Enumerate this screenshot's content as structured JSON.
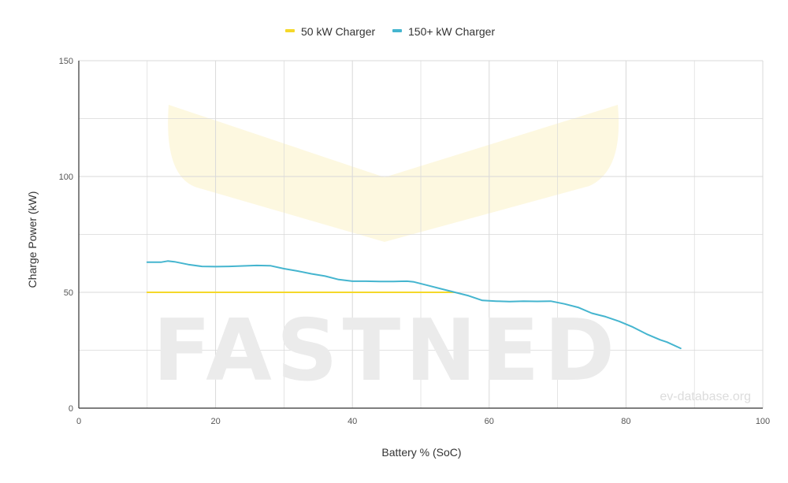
{
  "chart_data": {
    "type": "line",
    "xlabel": "Battery % (SoC)",
    "ylabel": "Charge Power (kW)",
    "xlim": [
      0,
      100
    ],
    "ylim": [
      0,
      150
    ],
    "x_ticks": [
      "0",
      "20",
      "40",
      "60",
      "80",
      "100"
    ],
    "y_ticks": [
      "0",
      "50",
      "100",
      "150"
    ],
    "grid": true,
    "legend_position": "top",
    "series": [
      {
        "name": "50 kW Charger",
        "color": "#f5d82a",
        "points": [
          [
            10,
            50
          ],
          [
            55,
            50
          ]
        ]
      },
      {
        "name": "150+ kW Charger",
        "color": "#45b5cf",
        "points": [
          [
            10,
            63
          ],
          [
            12,
            63
          ],
          [
            13,
            63.5
          ],
          [
            14,
            63.2
          ],
          [
            16,
            62
          ],
          [
            18,
            61.2
          ],
          [
            20,
            61.1
          ],
          [
            22,
            61.2
          ],
          [
            24,
            61.4
          ],
          [
            26,
            61.6
          ],
          [
            28,
            61.5
          ],
          [
            30,
            60.2
          ],
          [
            32,
            59.2
          ],
          [
            34,
            58
          ],
          [
            36,
            57
          ],
          [
            38,
            55.5
          ],
          [
            40,
            54.8
          ],
          [
            42,
            54.8
          ],
          [
            44,
            54.7
          ],
          [
            46,
            54.7
          ],
          [
            48,
            54.8
          ],
          [
            49,
            54.5
          ],
          [
            51,
            53
          ],
          [
            53,
            51.5
          ],
          [
            55,
            50
          ],
          [
            57,
            48.5
          ],
          [
            59,
            46.5
          ],
          [
            61,
            46.2
          ],
          [
            63,
            46
          ],
          [
            65,
            46.2
          ],
          [
            67,
            46.1
          ],
          [
            69,
            46.2
          ],
          [
            71,
            45
          ],
          [
            73,
            43.5
          ],
          [
            75,
            41
          ],
          [
            77,
            39.5
          ],
          [
            79,
            37.5
          ],
          [
            81,
            35
          ],
          [
            83,
            32
          ],
          [
            85,
            29.5
          ],
          [
            86,
            28.5
          ],
          [
            88,
            25.8
          ]
        ]
      }
    ]
  },
  "watermark": {
    "logo_text": "FASTNED",
    "credit_text": "ev-database.org"
  },
  "colors": {
    "grid": "#d9d9d9",
    "axis": "#333333",
    "watermark_chevron": "#fdf8e0",
    "watermark_text": "#ebebeb"
  }
}
